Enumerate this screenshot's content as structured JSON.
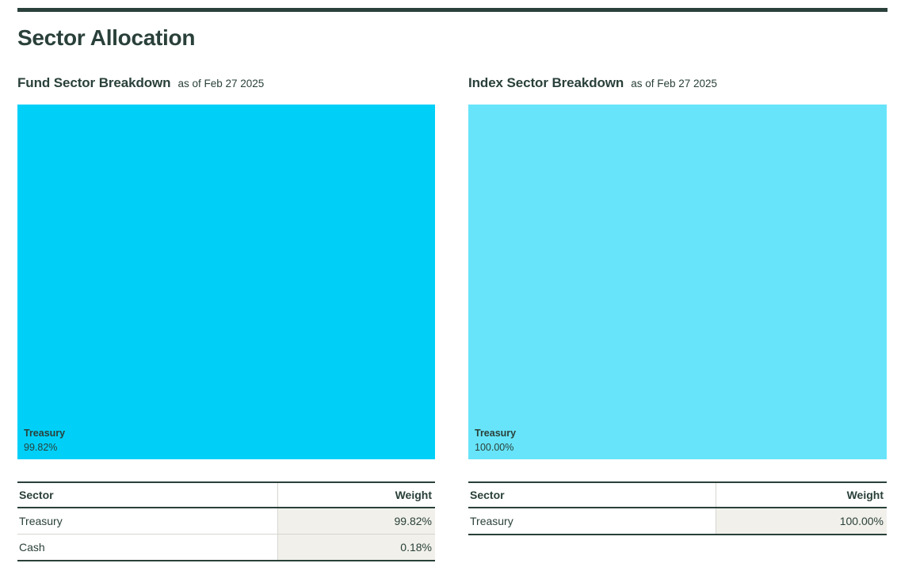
{
  "page": {
    "title": "Sector Allocation"
  },
  "colors": {
    "dark": "#2a403a",
    "fund_treemap": "#00d0f8",
    "index_treemap": "#67e4f9",
    "weight_cell_bg": "#f1f0ea"
  },
  "panels": [
    {
      "heading": "Fund Sector Breakdown",
      "as_of": "as of Feb 27 2025",
      "treemap": {
        "label": "Treasury",
        "value": "99.82%",
        "color": "#00d0f8"
      },
      "table": {
        "columns": [
          "Sector",
          "Weight"
        ],
        "rows": [
          [
            "Treasury",
            "99.82%"
          ],
          [
            "Cash",
            "0.18%"
          ]
        ]
      }
    },
    {
      "heading": "Index Sector Breakdown",
      "as_of": "as of Feb 27 2025",
      "treemap": {
        "label": "Treasury",
        "value": "100.00%",
        "color": "#67e4f9"
      },
      "table": {
        "columns": [
          "Sector",
          "Weight"
        ],
        "rows": [
          [
            "Treasury",
            "100.00%"
          ]
        ]
      }
    }
  ],
  "chart_data": [
    {
      "type": "treemap",
      "title": "Fund Sector Breakdown",
      "as_of": "Feb 27 2025",
      "categories": [
        "Treasury",
        "Cash"
      ],
      "values": [
        99.82,
        0.18
      ],
      "visible_segments": [
        {
          "label": "Treasury",
          "value": 99.82
        }
      ],
      "color": "#00d0f8",
      "legend": "none"
    },
    {
      "type": "treemap",
      "title": "Index Sector Breakdown",
      "as_of": "Feb 27 2025",
      "categories": [
        "Treasury"
      ],
      "values": [
        100.0
      ],
      "visible_segments": [
        {
          "label": "Treasury",
          "value": 100.0
        }
      ],
      "color": "#67e4f9",
      "legend": "none"
    }
  ]
}
